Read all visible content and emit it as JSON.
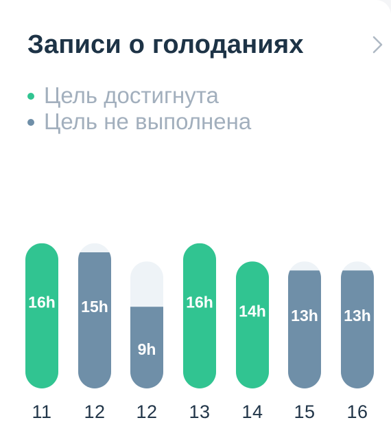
{
  "card": {
    "title": "Записи о голоданиях"
  },
  "legend": {
    "achieved": {
      "label": "Цель достигнута",
      "color": "#31c491"
    },
    "not_achieved": {
      "label": "Цель не выполнена",
      "color": "#6f8fa8"
    }
  },
  "colors": {
    "achieved": "#31c491",
    "not_achieved": "#6f8fa8",
    "track": "#eef3f7"
  },
  "icons": {
    "chevron": "chevron-right-icon"
  },
  "chart_data": {
    "type": "bar",
    "categories": [
      "11",
      "12",
      "12",
      "13",
      "14",
      "15",
      "16"
    ],
    "values": [
      16,
      15,
      9,
      16,
      14,
      13,
      13
    ],
    "labels": [
      "16h",
      "15h",
      "9h",
      "16h",
      "14h",
      "13h",
      "13h"
    ],
    "goal_hours": [
      16,
      16,
      14,
      16,
      14,
      14,
      14
    ],
    "status": [
      "achieved",
      "not_achieved",
      "not_achieved",
      "achieved",
      "achieved",
      "not_achieved",
      "not_achieved"
    ],
    "unit": "h"
  }
}
